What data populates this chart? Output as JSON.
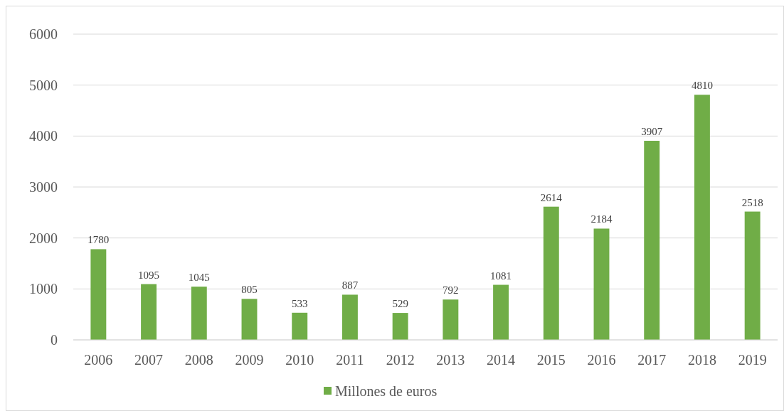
{
  "chart_data": {
    "type": "bar",
    "categories": [
      "2006",
      "2007",
      "2008",
      "2009",
      "2010",
      "2011",
      "2012",
      "2013",
      "2014",
      "2015",
      "2016",
      "2017",
      "2018",
      "2019"
    ],
    "series": [
      {
        "name": "Millones de euros",
        "color": "#70ad47",
        "values": [
          1780,
          1095,
          1045,
          805,
          533,
          887,
          529,
          792,
          1081,
          2614,
          2184,
          3907,
          4810,
          2518
        ]
      }
    ],
    "ylim": [
      0,
      6000
    ],
    "yticks": [
      0,
      1000,
      2000,
      3000,
      4000,
      5000,
      6000
    ],
    "grid": "y",
    "legend": "bottom",
    "data_labels": true
  }
}
